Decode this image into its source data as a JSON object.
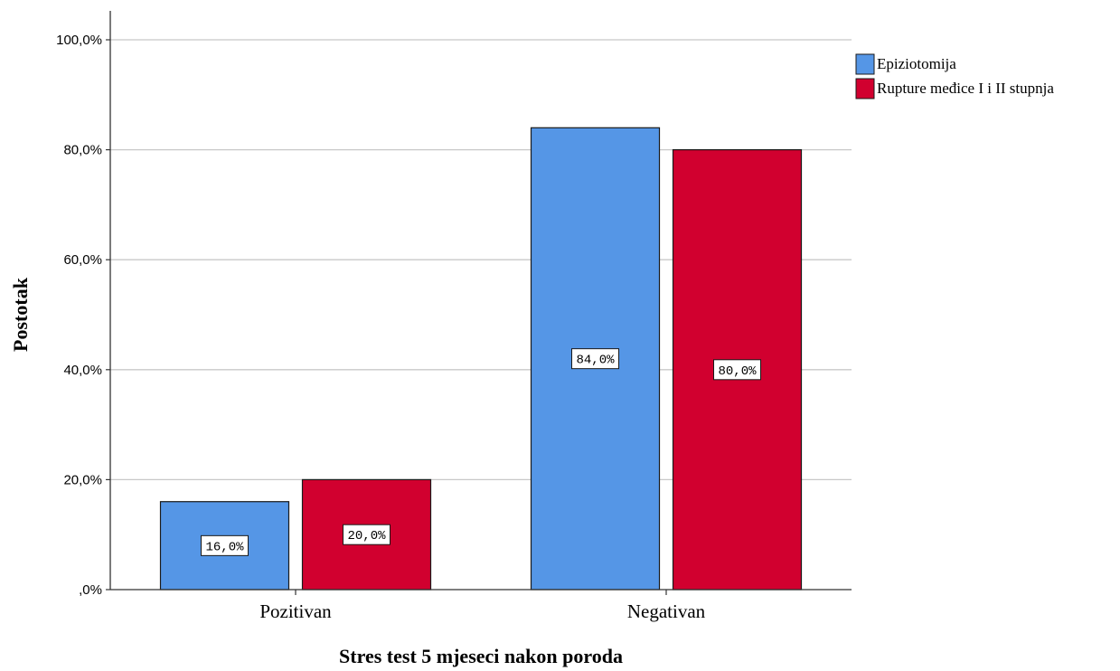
{
  "chart_data": {
    "type": "bar",
    "categories": [
      "Pozitivan",
      "Negativan"
    ],
    "series": [
      {
        "name": "Epiziotomija",
        "values": [
          16.0,
          84.0
        ],
        "labels": [
          "16,0%",
          "84,0%"
        ],
        "color": "#5596e6"
      },
      {
        "name": "Rupture međice I i II stupnja",
        "values": [
          20.0,
          80.0
        ],
        "labels": [
          "20,0%",
          "80,0%"
        ],
        "color": "#d1002f"
      }
    ],
    "xlabel": "Stres test 5 mjeseci nakon poroda",
    "ylabel": "Postotak",
    "ylim": [
      0,
      100
    ],
    "yticks": [
      0,
      20,
      40,
      60,
      80,
      100
    ],
    "ytick_labels": [
      ",0%",
      "20,0%",
      "40,0%",
      "60,0%",
      "80,0%",
      "100,0%"
    ],
    "grid": true,
    "legend_position": "top-right"
  }
}
